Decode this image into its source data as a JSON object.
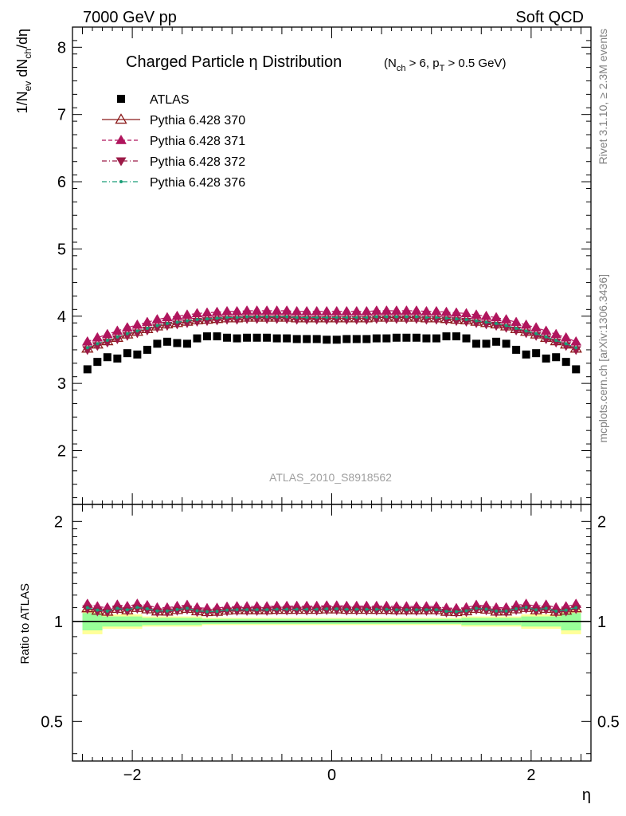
{
  "header": {
    "left": "7000 GeV pp",
    "right": "Soft QCD"
  },
  "side_labels": {
    "rivet": "Rivet 3.1.10, ≥ 2.3M events",
    "mcplots": "mcplots.cern.ch [arXiv:1306.3436]"
  },
  "watermark": "ATLAS_2010_S8918562",
  "chart_data": {
    "type": "scatter",
    "title": "Charged Particle η Distribution",
    "subtitle": "(N_ch > 6, p_T > 0.5 GeV)",
    "xlabel": "η",
    "ylabel": "1/N_ev dN_ch/dη",
    "ratio_ylabel": "Ratio to ATLAS",
    "xlim": [
      -2.6,
      2.6
    ],
    "ylim": [
      1.2,
      8.3
    ],
    "ratio_ylim": [
      0.38,
      2.25
    ],
    "xticks": [
      "−2",
      "0",
      "2"
    ],
    "yticks": [
      "2",
      "3",
      "4",
      "5",
      "6",
      "7",
      "8"
    ],
    "ratio_yticks": [
      "0.5",
      "1",
      "2"
    ],
    "legend_position": "top-left",
    "x": [
      -2.45,
      -2.35,
      -2.25,
      -2.15,
      -2.05,
      -1.95,
      -1.85,
      -1.75,
      -1.65,
      -1.55,
      -1.45,
      -1.35,
      -1.25,
      -1.15,
      -1.05,
      -0.95,
      -0.85,
      -0.75,
      -0.65,
      -0.55,
      -0.45,
      -0.35,
      -0.25,
      -0.15,
      -0.05,
      0.05,
      0.15,
      0.25,
      0.35,
      0.45,
      0.55,
      0.65,
      0.75,
      0.85,
      0.95,
      1.05,
      1.15,
      1.25,
      1.35,
      1.45,
      1.55,
      1.65,
      1.75,
      1.85,
      1.95,
      2.05,
      2.15,
      2.25,
      2.35,
      2.45
    ],
    "series": [
      {
        "name": "ATLAS",
        "color": "#000000",
        "marker": "square",
        "values": [
          3.21,
          3.32,
          3.39,
          3.37,
          3.45,
          3.43,
          3.5,
          3.59,
          3.62,
          3.6,
          3.59,
          3.67,
          3.7,
          3.7,
          3.68,
          3.67,
          3.68,
          3.68,
          3.68,
          3.67,
          3.67,
          3.66,
          3.66,
          3.66,
          3.65,
          3.65,
          3.66,
          3.66,
          3.66,
          3.67,
          3.67,
          3.68,
          3.68,
          3.68,
          3.67,
          3.67,
          3.7,
          3.7,
          3.67,
          3.59,
          3.59,
          3.62,
          3.59,
          3.5,
          3.43,
          3.45,
          3.37,
          3.39,
          3.32,
          3.21
        ]
      },
      {
        "name": "Pythia 6.428 370",
        "color": "#8b1a1a",
        "marker": "triangle-up-open",
        "line": "solid",
        "values": [
          3.52,
          3.58,
          3.63,
          3.68,
          3.73,
          3.77,
          3.81,
          3.85,
          3.88,
          3.9,
          3.92,
          3.94,
          3.95,
          3.96,
          3.97,
          3.97,
          3.98,
          3.98,
          3.98,
          3.98,
          3.98,
          3.97,
          3.97,
          3.97,
          3.97,
          3.97,
          3.97,
          3.97,
          3.97,
          3.98,
          3.98,
          3.98,
          3.98,
          3.98,
          3.97,
          3.97,
          3.96,
          3.95,
          3.94,
          3.92,
          3.9,
          3.88,
          3.85,
          3.81,
          3.77,
          3.73,
          3.68,
          3.63,
          3.58,
          3.52
        ]
      },
      {
        "name": "Pythia 6.428 371",
        "color": "#b0155d",
        "marker": "triangle-up",
        "line": "dashed",
        "values": [
          3.62,
          3.68,
          3.73,
          3.78,
          3.83,
          3.87,
          3.91,
          3.95,
          3.98,
          4.0,
          4.02,
          4.04,
          4.05,
          4.06,
          4.07,
          4.07,
          4.08,
          4.08,
          4.08,
          4.08,
          4.08,
          4.07,
          4.07,
          4.07,
          4.07,
          4.07,
          4.07,
          4.07,
          4.07,
          4.08,
          4.08,
          4.08,
          4.08,
          4.08,
          4.07,
          4.07,
          4.06,
          4.05,
          4.04,
          4.02,
          4.0,
          3.98,
          3.95,
          3.91,
          3.87,
          3.83,
          3.78,
          3.73,
          3.68,
          3.62
        ]
      },
      {
        "name": "Pythia 6.428 372",
        "color": "#9c1a47",
        "marker": "triangle-down",
        "line": "dashdot",
        "values": [
          3.5,
          3.56,
          3.61,
          3.66,
          3.71,
          3.75,
          3.79,
          3.83,
          3.86,
          3.88,
          3.9,
          3.92,
          3.93,
          3.94,
          3.95,
          3.95,
          3.96,
          3.96,
          3.96,
          3.96,
          3.96,
          3.95,
          3.95,
          3.95,
          3.95,
          3.95,
          3.95,
          3.95,
          3.95,
          3.96,
          3.96,
          3.96,
          3.96,
          3.96,
          3.95,
          3.95,
          3.94,
          3.93,
          3.92,
          3.9,
          3.88,
          3.86,
          3.83,
          3.79,
          3.75,
          3.71,
          3.66,
          3.61,
          3.56,
          3.5
        ]
      },
      {
        "name": "Pythia 6.428 376",
        "color": "#1a9e77",
        "marker": "dot",
        "line": "dashdot",
        "values": [
          3.53,
          3.59,
          3.64,
          3.69,
          3.74,
          3.78,
          3.82,
          3.86,
          3.89,
          3.91,
          3.93,
          3.95,
          3.96,
          3.97,
          3.98,
          3.98,
          3.99,
          3.99,
          3.99,
          3.99,
          3.99,
          3.98,
          3.98,
          3.98,
          3.98,
          3.98,
          3.98,
          3.98,
          3.98,
          3.99,
          3.99,
          3.99,
          3.99,
          3.99,
          3.98,
          3.98,
          3.97,
          3.96,
          3.95,
          3.93,
          3.91,
          3.89,
          3.86,
          3.82,
          3.78,
          3.74,
          3.69,
          3.64,
          3.59,
          3.53
        ]
      }
    ],
    "ratio_band": {
      "edges": [
        -2.5,
        -2.3,
        -1.9,
        -1.3,
        1.3,
        1.9,
        2.3,
        2.5
      ],
      "yellow": [
        0.085,
        0.05,
        0.035,
        0.025,
        0.035,
        0.05,
        0.085
      ],
      "green": [
        0.06,
        0.035,
        0.025,
        0.018,
        0.025,
        0.035,
        0.06
      ],
      "colors": {
        "yellow": "#ffff99",
        "green": "#99ff99"
      }
    }
  }
}
